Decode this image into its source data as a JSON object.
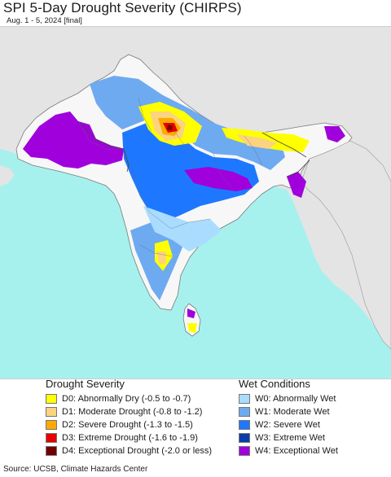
{
  "header": {
    "title": "SPI 5-Day Drought Severity (CHIRPS)",
    "subtitle": "Aug. 1 - 5, 2024 [final]"
  },
  "legend": {
    "drought": {
      "title": "Drought Severity",
      "items": [
        {
          "label": "D0: Abnormally Dry (-0.5 to -0.7)",
          "color": "#ffff00"
        },
        {
          "label": "D1: Moderate Drought (-0.8 to -1.2)",
          "color": "#fcd37f"
        },
        {
          "label": "D2: Severe Drought (-1.3 to -1.5)",
          "color": "#ffaa00"
        },
        {
          "label": "D3: Extreme Drought (-1.6 to -1.9)",
          "color": "#e60000"
        },
        {
          "label": "D4: Exceptional Drought (-2.0 or less)",
          "color": "#730000"
        }
      ]
    },
    "wet": {
      "title": "Wet Conditions",
      "items": [
        {
          "label": "W0: Abnormally Wet",
          "color": "#aadcff"
        },
        {
          "label": "W1: Moderate Wet",
          "color": "#6eaaf0"
        },
        {
          "label": "W2: Severe Wet",
          "color": "#1e78ff"
        },
        {
          "label": "W3: Extreme Wet",
          "color": "#0a3ca8"
        },
        {
          "label": "W4: Exceptional Wet",
          "color": "#a000dc"
        }
      ]
    }
  },
  "footer": {
    "source": "Source: UCSB, Climate Hazards Center"
  },
  "map_colors": {
    "ocean": "#a6f1ed",
    "land_outside": "#e4e4e4",
    "land_inside": "#f7f7f7",
    "border": "#7a7a7a"
  }
}
